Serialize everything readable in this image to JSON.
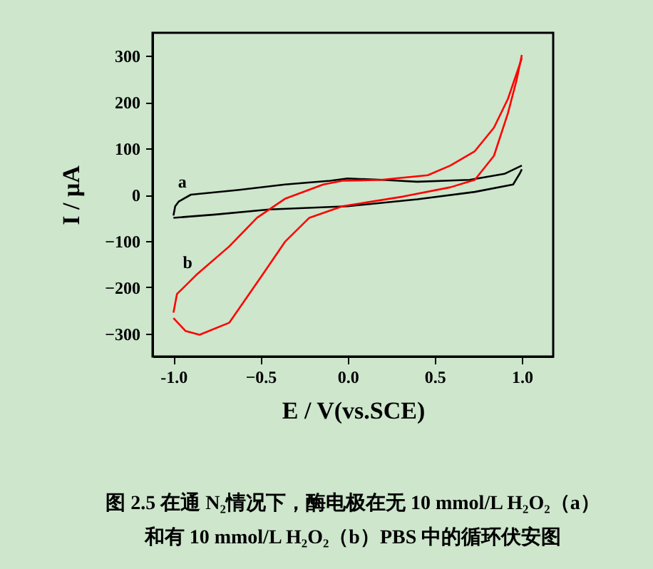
{
  "chart_data": {
    "type": "line",
    "title": [
      "图 2.5 在通 N₂情况下，酶电极在无 10 mmol/L H₂O₂（a）",
      "和有 10 mmol/L H₂O₂（b）PBS 中的循环伏安图"
    ],
    "xlabel": "E / V(vs.SCE)",
    "ylabel": "I / μA",
    "xlim": [
      -1.12,
      1.18
    ],
    "xticks": [
      {
        "value": -1,
        "label": "-1.0"
      },
      -0.5,
      {
        "value": 0,
        "label": "0.0"
      },
      0.5,
      {
        "value": 1,
        "label": "1.0"
      }
    ],
    "ylim": [
      -350,
      350
    ],
    "yticks": [
      -300,
      -200,
      -100,
      0,
      100,
      200,
      300
    ],
    "grid": false,
    "marker": "none",
    "line_style": "solid",
    "series": [
      {
        "name": "a",
        "color": "#000000",
        "x": [
          -1.0,
          -0.99,
          -0.97,
          -0.9,
          -0.63,
          -0.36,
          -0.1,
          0.0,
          0.2,
          0.4,
          0.7,
          0.9,
          1.0
        ],
        "values": [
          -45,
          -25,
          -15,
          0,
          10,
          22,
          30,
          35,
          32,
          28,
          32,
          45,
          63
        ]
      },
      {
        "color": "#000000",
        "x": [
          1.0,
          0.99,
          0.95,
          0.73,
          0.4,
          0.0,
          -0.45,
          -0.76,
          -1.0
        ],
        "values": [
          55,
          47,
          22,
          6,
          -10,
          -25,
          -32,
          -43,
          -50
        ]
      },
      {
        "color": "#ff0000",
        "x": [
          -1.0,
          -0.93,
          -0.85,
          -0.68,
          -0.49,
          -0.36,
          -0.22,
          -0.03,
          0.32,
          0.59,
          0.73,
          0.84,
          0.92,
          0.97,
          1.0
        ],
        "values": [
          -267,
          -295,
          -303,
          -277,
          -174,
          -102,
          -50,
          -25,
          -4,
          16,
          32,
          84,
          176,
          248,
          302
        ]
      },
      {
        "name": "b",
        "color": "#ff0000",
        "x": [
          1.0,
          0.92,
          0.84,
          0.73,
          0.59,
          0.46,
          0.19,
          -0.03,
          -0.14,
          -0.36,
          -0.52,
          -0.68,
          -0.87,
          -0.98,
          -1.0
        ],
        "values": [
          295,
          207,
          145,
          94,
          63,
          42,
          32,
          30,
          22,
          -9,
          -50,
          -112,
          -174,
          -215,
          -255
        ]
      }
    ]
  }
}
